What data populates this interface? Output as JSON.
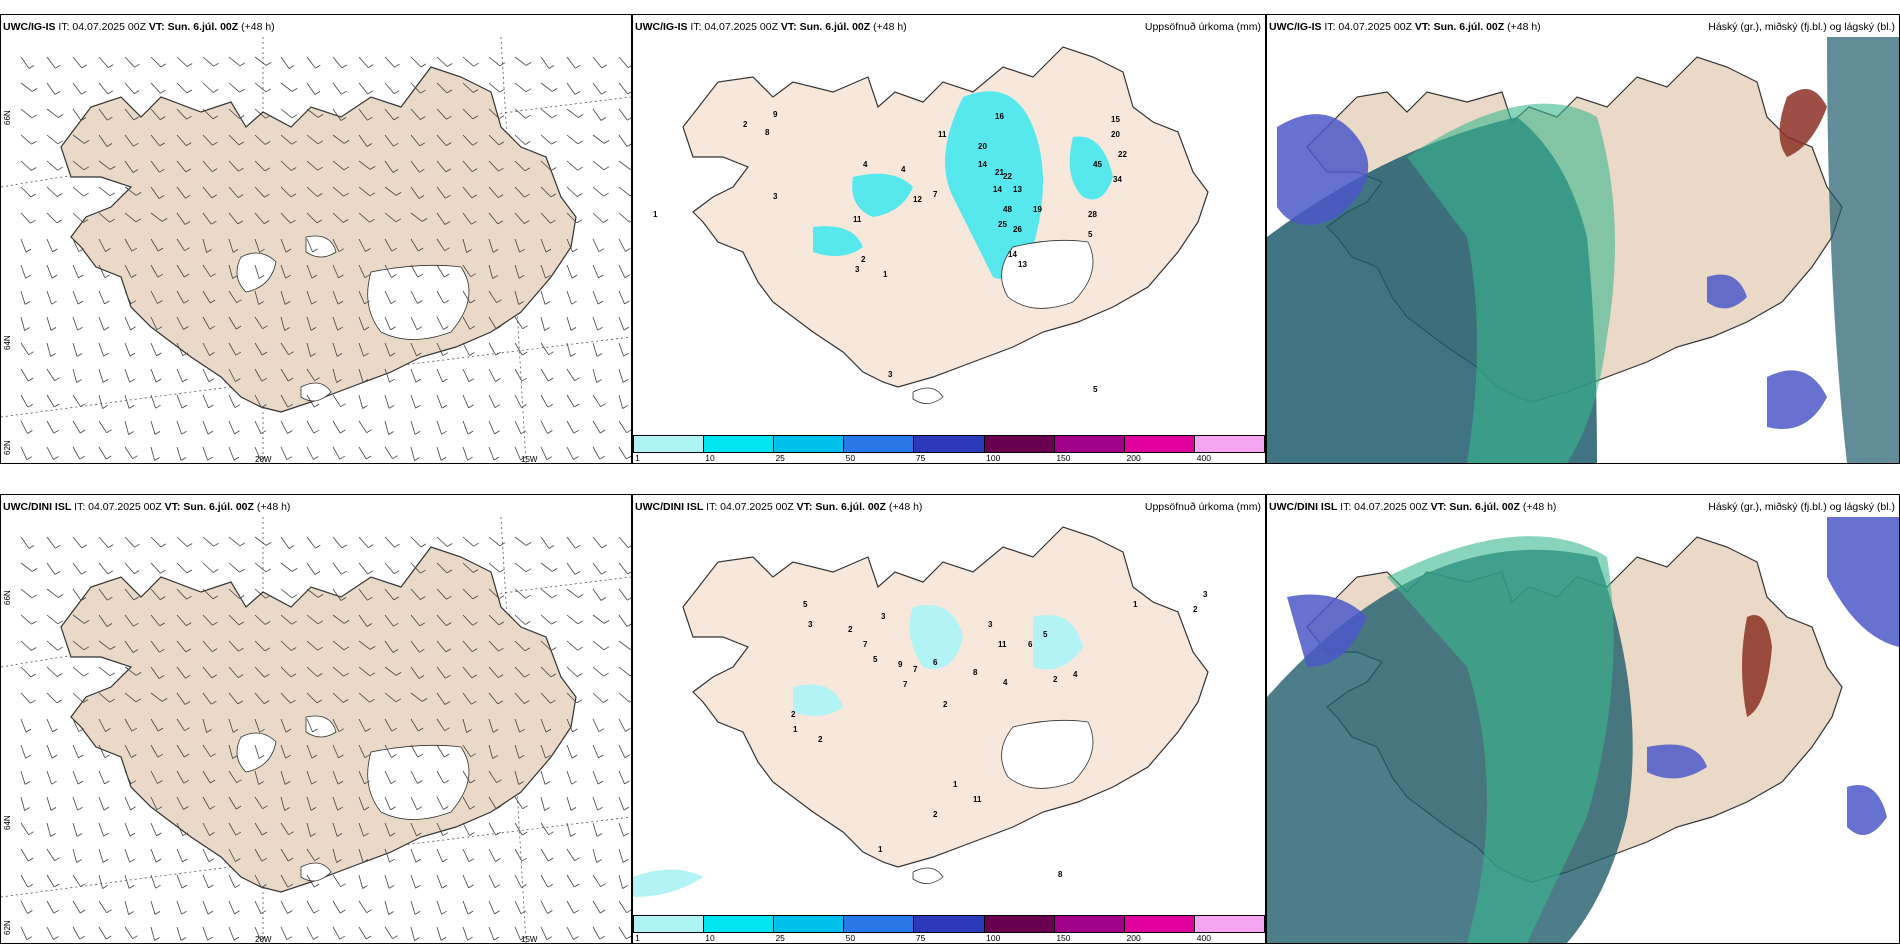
{
  "colors": {
    "land": "#ead9c6",
    "land_light": "#f8e8dc",
    "glacier": "#ffffff",
    "precip_cyan": "#45e8ee",
    "precip_light": "#aef3f6",
    "high_cloud": "#8c2f24",
    "mid_cloud": "#4b58c8",
    "low_cloud_dark": "#1f5c6c",
    "low_cloud_green": "#3ab890"
  },
  "rows": [
    {
      "model_label": "UWC/IG-IS",
      "panels": {
        "wind": {
          "header": {
            "model": "UWC/IG-IS",
            "it": "IT: 04.07.2025 00Z",
            "vt": "VT: Sun. 6.júl. 00Z",
            "lead": "(+48 h)"
          },
          "lat_labels": [
            "66N",
            "64N",
            "62N"
          ],
          "lon_labels": [
            "20W",
            "15W"
          ]
        },
        "precip": {
          "header": {
            "model": "UWC/IG-IS",
            "it": "IT: 04.07.2025 00Z",
            "vt": "VT: Sun. 6.júl. 00Z",
            "lead": "(+48 h)"
          },
          "title": "Uppsöfnuð úrkoma (mm)",
          "values": [
            "1",
            "2",
            "9",
            "8",
            "3",
            "4",
            "4",
            "12",
            "7",
            "11",
            "20",
            "14",
            "16",
            "21",
            "22",
            "14",
            "13",
            "48",
            "19",
            "25",
            "26",
            "45",
            "20",
            "34",
            "22",
            "15",
            "28",
            "14",
            "13",
            "5",
            "11",
            "2",
            "3",
            "1",
            "3",
            "5"
          ]
        },
        "cloud": {
          "header": {
            "model": "UWC/IG-IS",
            "it": "IT: 04.07.2025 00Z",
            "vt": "VT: Sun. 6.júl. 00Z",
            "lead": "(+48 h)"
          },
          "title": "Háský (gr.), miðský (fj.bl.) og lágský (bl.)"
        }
      }
    },
    {
      "model_label": "UWC/DINI ISL",
      "panels": {
        "wind": {
          "header": {
            "model": "UWC/DINI ISL",
            "it": "IT: 04.07.2025 00Z",
            "vt": "VT: Sun. 6.júl. 00Z",
            "lead": "(+48 h)"
          },
          "lat_labels": [
            "66N",
            "64N",
            "62N"
          ],
          "lon_labels": [
            "20W",
            "15W"
          ]
        },
        "precip": {
          "header": {
            "model": "UWC/DINI ISL",
            "it": "IT: 04.07.2025 00Z",
            "vt": "VT: Sun. 6.júl. 00Z",
            "lead": "(+48 h)"
          },
          "title": "Uppsöfnuð úrkoma (mm)",
          "values": [
            "5",
            "3",
            "2",
            "7",
            "3",
            "5",
            "9",
            "7",
            "6",
            "8",
            "4",
            "11",
            "6",
            "3",
            "5",
            "2",
            "4",
            "2",
            "1",
            "2",
            "11",
            "2",
            "1",
            "8",
            "1",
            "2",
            "3",
            "7",
            "2",
            "1"
          ]
        },
        "cloud": {
          "header": {
            "model": "UWC/DINI ISL",
            "it": "IT: 04.07.2025 00Z",
            "vt": "VT: Sun. 6.júl. 00Z",
            "lead": "(+48 h)"
          },
          "title": "Háský (gr.), miðský (fj.bl.) og lágský (bl.)"
        }
      }
    }
  ],
  "colorbar": {
    "ticks": [
      "1",
      "10",
      "25",
      "50",
      "75",
      "100",
      "150",
      "200",
      "400"
    ],
    "colors": [
      "#aef3f6",
      "#00e6f0",
      "#00c0ec",
      "#2a78e8",
      "#2a3ab8",
      "#6a0050",
      "#a0008a",
      "#e0009c",
      "#f6a6f0"
    ]
  }
}
